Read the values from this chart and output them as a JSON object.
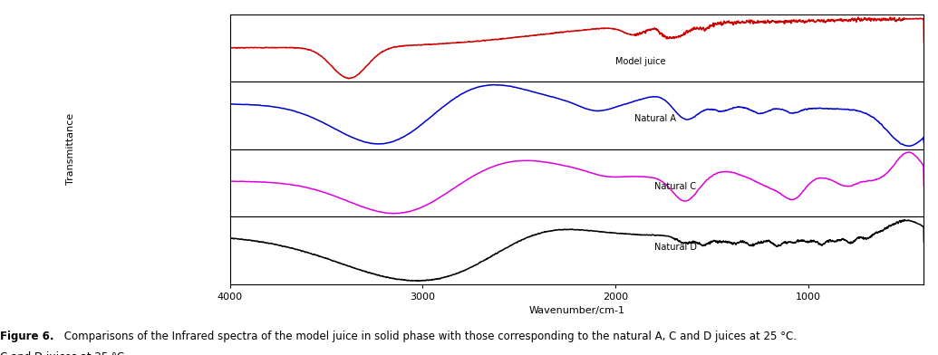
{
  "xlabel": "Wavenumber/cm-1",
  "ylabel": "Transmittance",
  "xlim": [
    4000,
    400
  ],
  "xticks": [
    4000,
    3000,
    2000,
    1000
  ],
  "colors": {
    "model_juice": "#cc0000",
    "natural_a": "#0000cc",
    "natural_c": "#dd00dd",
    "natural_d": "#000000"
  },
  "labels": {
    "model_juice": "Model juice",
    "natural_a": "Natural A",
    "natural_c": "Natural C",
    "natural_d": "Natural D"
  },
  "caption_bold": "Figure 6.",
  "caption_normal": " Comparisons of the Infrared spectra of the model juice in solid phase with those corresponding to the natural A, C and D juices at 25 °C.",
  "linewidth": 1.1
}
